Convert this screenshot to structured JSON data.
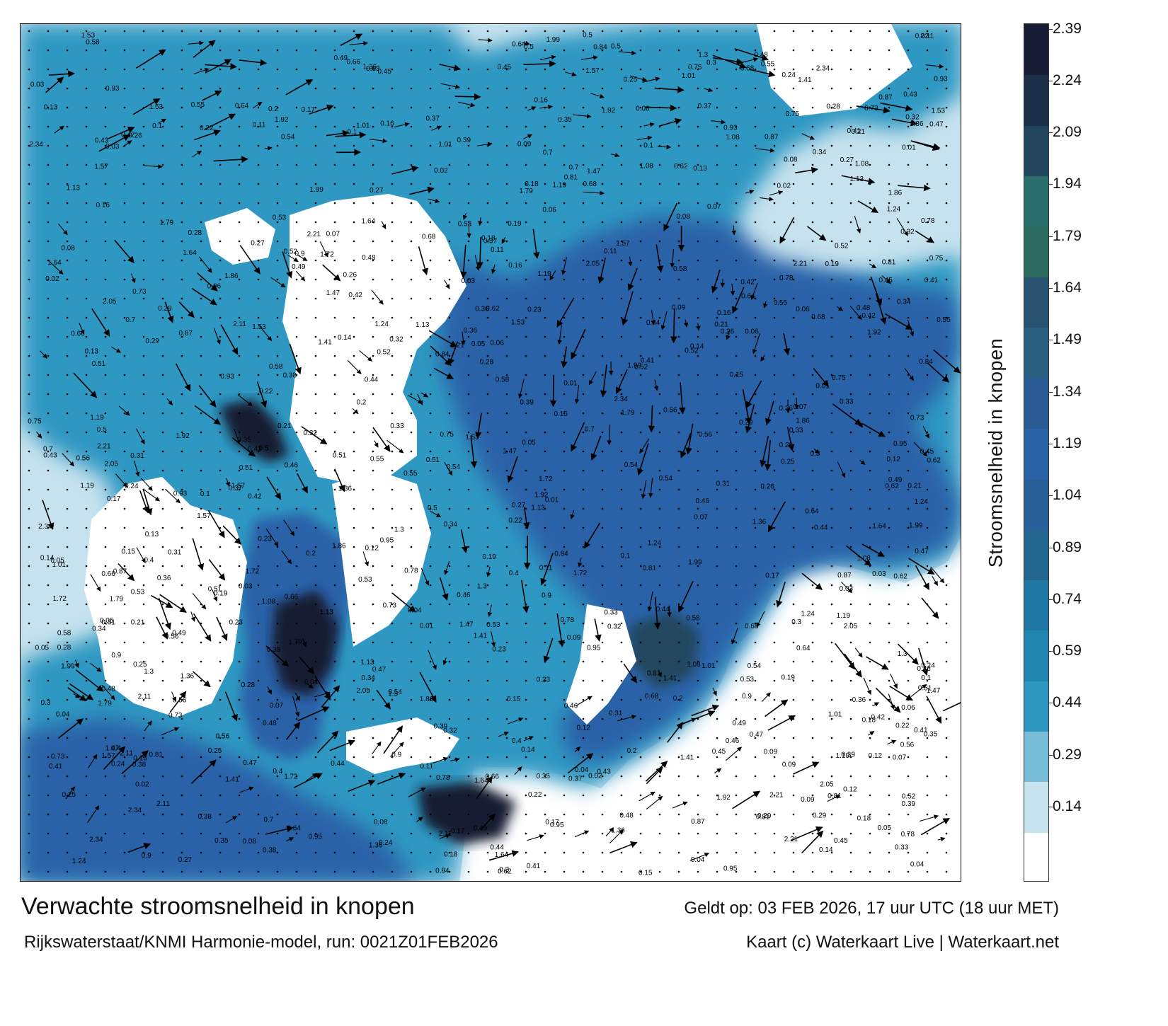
{
  "title": "Verwachte stroomsnelheid in knopen",
  "subtitle": "Rijkswaterstaat/KNMI Harmonie-model, run: 0021Z01FEB2026",
  "valid_time": "Geldt op: 03 FEB 2026, 17 uur UTC (18 uur MET)",
  "credit": "Kaart (c) Waterkaart Live | Waterkaart.net",
  "colorbar": {
    "label": "Stroomsnelheid in knopen",
    "ticks": [
      "0.14",
      "0.29",
      "0.44",
      "0.59",
      "0.74",
      "0.89",
      "1.04",
      "1.19",
      "1.34",
      "1.49",
      "1.64",
      "1.79",
      "1.94",
      "2.09",
      "2.24",
      "2.39"
    ],
    "colors": [
      "#ffffff",
      "#c6e2ee",
      "#78bdd7",
      "#2f98c2",
      "#2086ad",
      "#1e78a3",
      "#22668f",
      "#285f99",
      "#2a62a8",
      "#2a5b94",
      "#285f82",
      "#27516f",
      "#2b6b5e",
      "#2a6e6c",
      "#22465e",
      "#1b2f48",
      "#161c33"
    ]
  },
  "colors": {
    "land": "#ffffff",
    "shallow": "#c6e2ee",
    "medium": "#2f98c2",
    "deep": "#2a62a8",
    "strong": "#161c33",
    "arrow": "#000000"
  },
  "speed_labels": [
    "0.48",
    "0.51",
    "0.46",
    "0.49",
    "0.45",
    "0.41",
    "0.32",
    "0.5",
    "0.52",
    "0.53",
    "0.54",
    "0.55",
    "0.47",
    "0.56",
    "0.58",
    "0.62",
    "0.64",
    "0.66",
    "0.68",
    "0.7",
    "0.73",
    "0.75",
    "0.78",
    "0.81",
    "0.84",
    "0.87",
    "0.9",
    "0.93",
    "0.95",
    "1.01",
    "1.08",
    "1.13",
    "1.19",
    "1.24",
    "1.3",
    "1.36",
    "1.41",
    "1.47",
    "1.53",
    "1.57",
    "1.64",
    "1.72",
    "1.79",
    "1.86",
    "1.92",
    "1.99",
    "2.05",
    "2.11",
    "2.21",
    "2.34",
    "0.01",
    "0.02",
    "0.03",
    "0.04",
    "0.05",
    "0.06",
    "0.07",
    "0.08",
    "0.09",
    "0.1",
    "0.11",
    "0.12",
    "0.13",
    "0.14",
    "0.15",
    "0.16",
    "0.17",
    "0.18",
    "0.19",
    "0.2",
    "0.21",
    "0.22",
    "0.23",
    "0.24",
    "0.25",
    "0.26",
    "0.27",
    "0.28",
    "0.29",
    "0.3",
    "0.31",
    "0.33",
    "0.34",
    "0.35",
    "0.36",
    "0.37",
    "0.38",
    "0.39",
    "0.4",
    "0.42",
    "0.43",
    "0.44"
  ]
}
